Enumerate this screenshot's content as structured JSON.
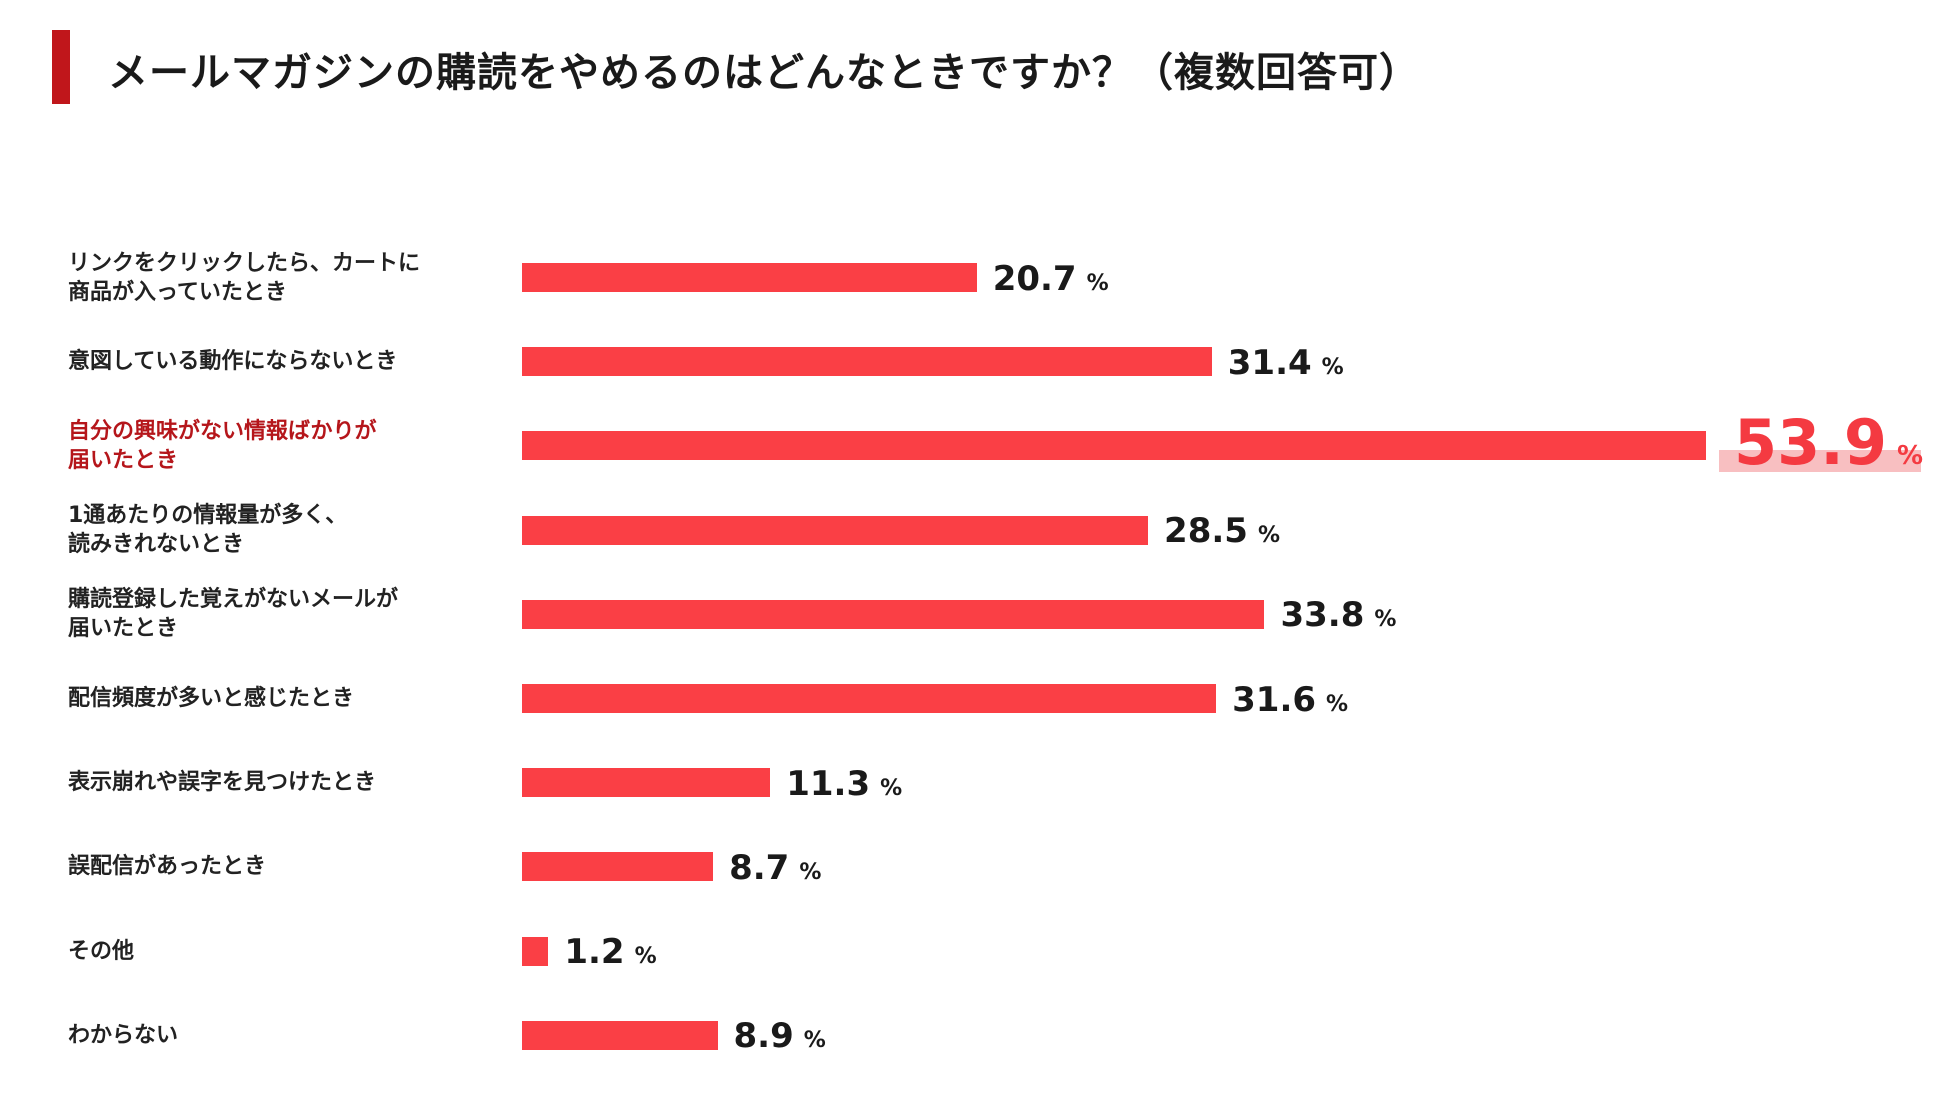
{
  "title": "メールマガジンの購読をやめるのはどんなときですか？（複数回答可）",
  "colors": {
    "accent": "#c0161b",
    "bar": "#fa3f45",
    "highlight_text": "#b5161b",
    "highlight_value": "#f43a41",
    "highlight_bg": "#f8bfc1"
  },
  "unit": "%",
  "chart_data": {
    "type": "bar",
    "orientation": "horizontal",
    "title": "メールマガジンの購読をやめるのはどんなときですか？（複数回答可）",
    "categories": [
      "リンクをクリックしたら、カートに商品が入っていたとき",
      "意図している動作にならないとき",
      "自分の興味がない情報ばかりが届いたとき",
      "1通あたりの情報量が多く、読みきれないとき",
      "購読登録した覚えがないメールが届いたとき",
      "配信頻度が多いと感じたとき",
      "表示崩れや誤字を見つけたとき",
      "誤配信があったとき",
      "その他",
      "わからない"
    ],
    "label_lines": [
      [
        "リンクをクリックしたら、カートに",
        "商品が入っていたとき"
      ],
      [
        "意図している動作にならないとき"
      ],
      [
        "自分の興味がない情報ばかりが",
        "届いたとき"
      ],
      [
        "1通あたりの情報量が多く、",
        "読みきれないとき"
      ],
      [
        "購読登録した覚えがないメールが",
        "届いたとき"
      ],
      [
        "配信頻度が多いと感じたとき"
      ],
      [
        "表示崩れや誤字を見つけたとき"
      ],
      [
        "誤配信があったとき"
      ],
      [
        "その他"
      ],
      [
        "わからない"
      ]
    ],
    "values": [
      20.7,
      31.4,
      53.9,
      28.5,
      33.8,
      31.6,
      11.3,
      8.7,
      1.2,
      8.9
    ],
    "value_labels": [
      "20.7",
      "31.4",
      "53.9",
      "28.5",
      "33.8",
      "31.6",
      "11.3",
      "8.7",
      "1.2",
      "8.9"
    ],
    "highlight_index": 2,
    "unit": "%"
  }
}
